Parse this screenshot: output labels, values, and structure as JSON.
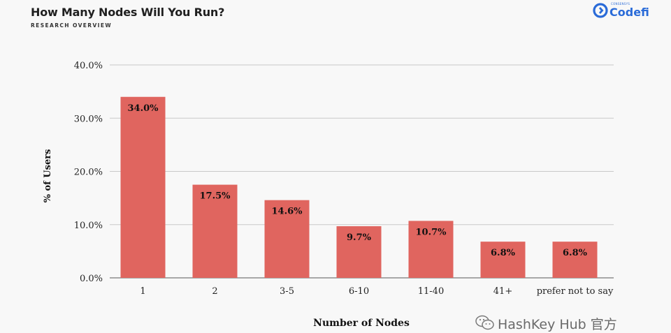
{
  "header": {
    "title": "How Many Nodes Will You Run?",
    "subtitle": "RESEARCH OVERVIEW"
  },
  "brand": {
    "name": "Codefi",
    "tagline": "CONSENSYS",
    "color": "#2a6bd8"
  },
  "watermark": {
    "text": "HashKey Hub 官方",
    "icon": "wechat-icon"
  },
  "chart_data": {
    "type": "bar",
    "categories": [
      "1",
      "2",
      "3-5",
      "6-10",
      "11-40",
      "41+",
      "prefer not to say"
    ],
    "values": [
      34.0,
      17.5,
      14.6,
      9.7,
      10.7,
      6.8,
      6.8
    ],
    "data_labels": [
      "34.0%",
      "17.5%",
      "14.6%",
      "9.7%",
      "10.7%",
      "6.8%",
      "6.8%"
    ],
    "title": "How Many Nodes Will You Run?",
    "xlabel": "Number of Nodes",
    "ylabel": "% of Users",
    "ylim": [
      0,
      40
    ],
    "yticks": [
      0,
      10,
      20,
      30,
      40
    ],
    "ytick_labels": [
      "0.0%",
      "10.0%",
      "20.0%",
      "30.0%",
      "40.0%"
    ],
    "grid": true,
    "legend": "none",
    "bar_color": "#e0655f"
  }
}
